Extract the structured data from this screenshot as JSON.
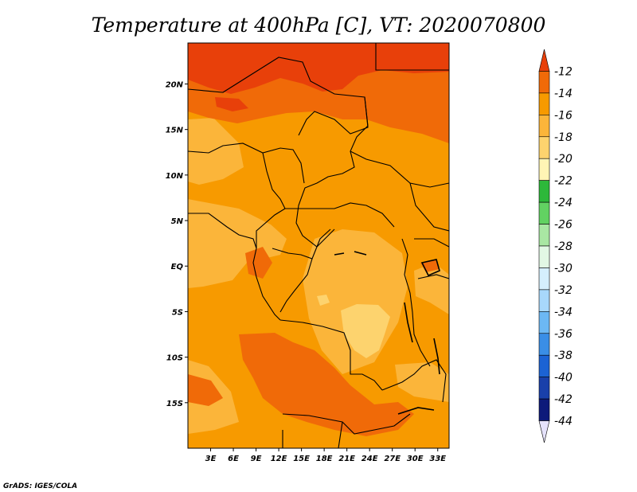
{
  "chart_data": {
    "type": "heatmap",
    "title": "Temperature at 400hPa [C], VT: 2020070800",
    "xlabel": "",
    "ylabel": "",
    "x_ticks": [
      "3E",
      "6E",
      "9E",
      "12E",
      "15E",
      "18E",
      "21E",
      "24E",
      "27E",
      "30E",
      "33E"
    ],
    "y_ticks": [
      "20N",
      "15N",
      "10N",
      "5N",
      "EQ",
      "5S",
      "10S",
      "15S"
    ],
    "xlim": [
      0,
      34.5
    ],
    "ylim": [
      -20,
      24.5
    ],
    "x_tick_values": [
      3,
      6,
      9,
      12,
      15,
      18,
      21,
      24,
      27,
      30,
      33
    ],
    "y_tick_values": [
      20,
      15,
      10,
      5,
      0,
      -5,
      -10,
      -15
    ],
    "colorbar": {
      "labels": [
        "-12",
        "-14",
        "-16",
        "-18",
        "-20",
        "-22",
        "-24",
        "-26",
        "-28",
        "-30",
        "-32",
        "-34",
        "-36",
        "-38",
        "-40",
        "-42",
        "-44"
      ],
      "colors": [
        "#e8400a",
        "#f06a08",
        "#f79a00",
        "#fbb53a",
        "#fdd36e",
        "#fff5b5",
        "#2db83a",
        "#62d262",
        "#a9e7a3",
        "#e2f8e4",
        "#d5effd",
        "#a8d8fb",
        "#6cb8f4",
        "#3a8ee6",
        "#1c63d4",
        "#1940aa",
        "#0d1a7a",
        "#e5e2fb"
      ]
    },
    "fields": [
      {
        "level": "-17",
        "color": "#fbb53a",
        "regions": [
          "western Atlantic near equator",
          "west Africa coast 5-10N",
          "eastern equatorial Congo",
          "Atlantic 12-20S"
        ]
      },
      {
        "level": "-18",
        "color": "#fdd36e",
        "regions": [
          "central Congo basin near 5-8S, 22-26E"
        ]
      },
      {
        "level": "-13",
        "color": "#f06a08",
        "regions": [
          "Sahara 15-24N",
          "southern Africa 8-20S",
          "Gabon coast"
        ]
      },
      {
        "level": "-12",
        "color": "#e8400a",
        "regions": [
          "northern Sahara 22-24.5N"
        ]
      }
    ]
  },
  "footer": {
    "credit": "GrADS: IGES/COLA"
  }
}
